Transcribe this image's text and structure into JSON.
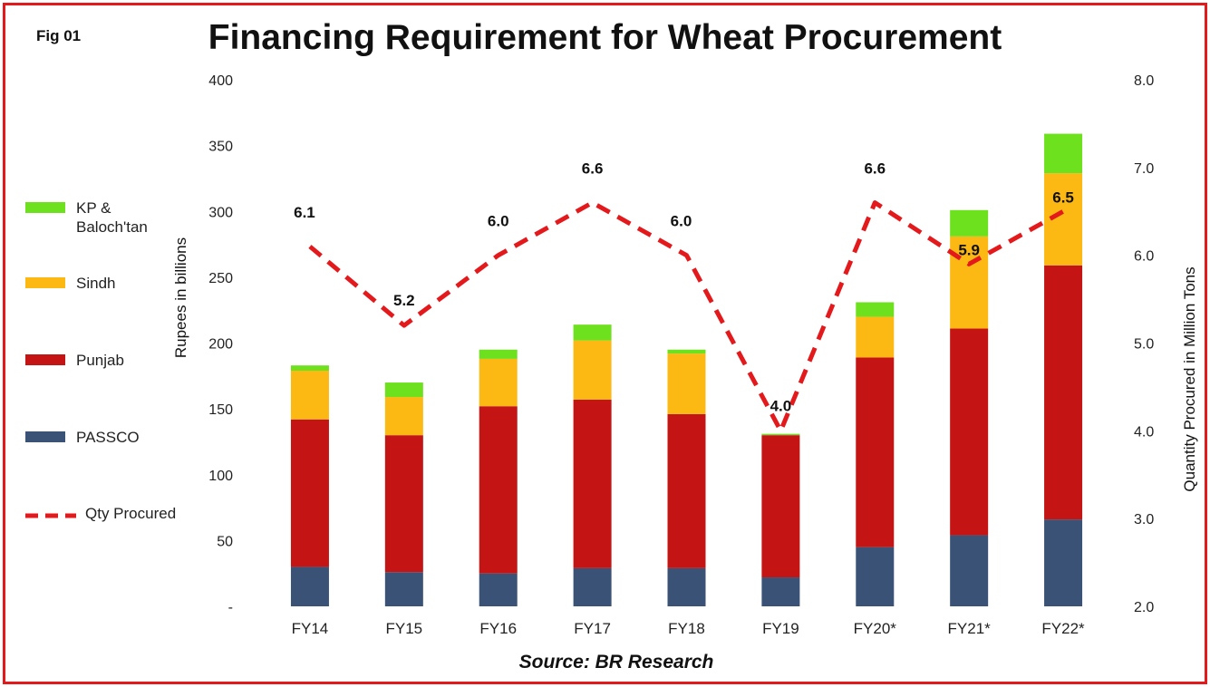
{
  "figure": {
    "label": "Fig 01",
    "source": "Source: BR Research"
  },
  "chart_data": {
    "type": "bar",
    "stacked": true,
    "title": "Financing Requirement for Wheat Procurement",
    "ylabel": "Rupees in billions",
    "y2label": "Quantity Procured in Million Tons",
    "ylim": [
      0,
      400
    ],
    "y2lim": [
      2.0,
      8.0
    ],
    "yticks": [
      "-",
      "50",
      "100",
      "150",
      "200",
      "250",
      "300",
      "350",
      "400"
    ],
    "y2ticks": [
      "2.0",
      "3.0",
      "4.0",
      "5.0",
      "6.0",
      "7.0",
      "8.0"
    ],
    "categories": [
      "FY14",
      "FY15",
      "FY16",
      "FY17",
      "FY18",
      "FY19",
      "FY20*",
      "FY21*",
      "FY22*"
    ],
    "series": [
      {
        "name": "PASSCO",
        "color": "#3b5277",
        "values": [
          30,
          26,
          25,
          29,
          29,
          22,
          45,
          54,
          66
        ]
      },
      {
        "name": "Punjab",
        "color": "#c41414",
        "values": [
          112,
          104,
          127,
          128,
          117,
          108,
          144,
          157,
          193
        ]
      },
      {
        "name": "Sindh",
        "color": "#fcb914",
        "values": [
          37,
          29,
          36,
          45,
          46,
          0,
          31,
          70,
          70
        ]
      },
      {
        "name": "KP & Baloch'tan",
        "color": "#6ee11f",
        "values": [
          4,
          11,
          7,
          12,
          3,
          1,
          11,
          20,
          30
        ]
      }
    ],
    "line": {
      "name": "Qty Procured",
      "color": "#e3191c",
      "axis": "right",
      "style": "dashed",
      "values": [
        6.1,
        5.2,
        6.0,
        6.6,
        6.0,
        4.0,
        6.6,
        5.9,
        6.5
      ],
      "labels": [
        "6.1",
        "5.2",
        "6.0",
        "6.6",
        "6.0",
        "4.0",
        "6.6",
        "5.9",
        "6.5"
      ]
    },
    "legend": {
      "placement": "left",
      "order": [
        "KP & Baloch'tan",
        "Sindh",
        "Punjab",
        "PASSCO",
        "Qty Procured"
      ]
    },
    "grid": false
  }
}
